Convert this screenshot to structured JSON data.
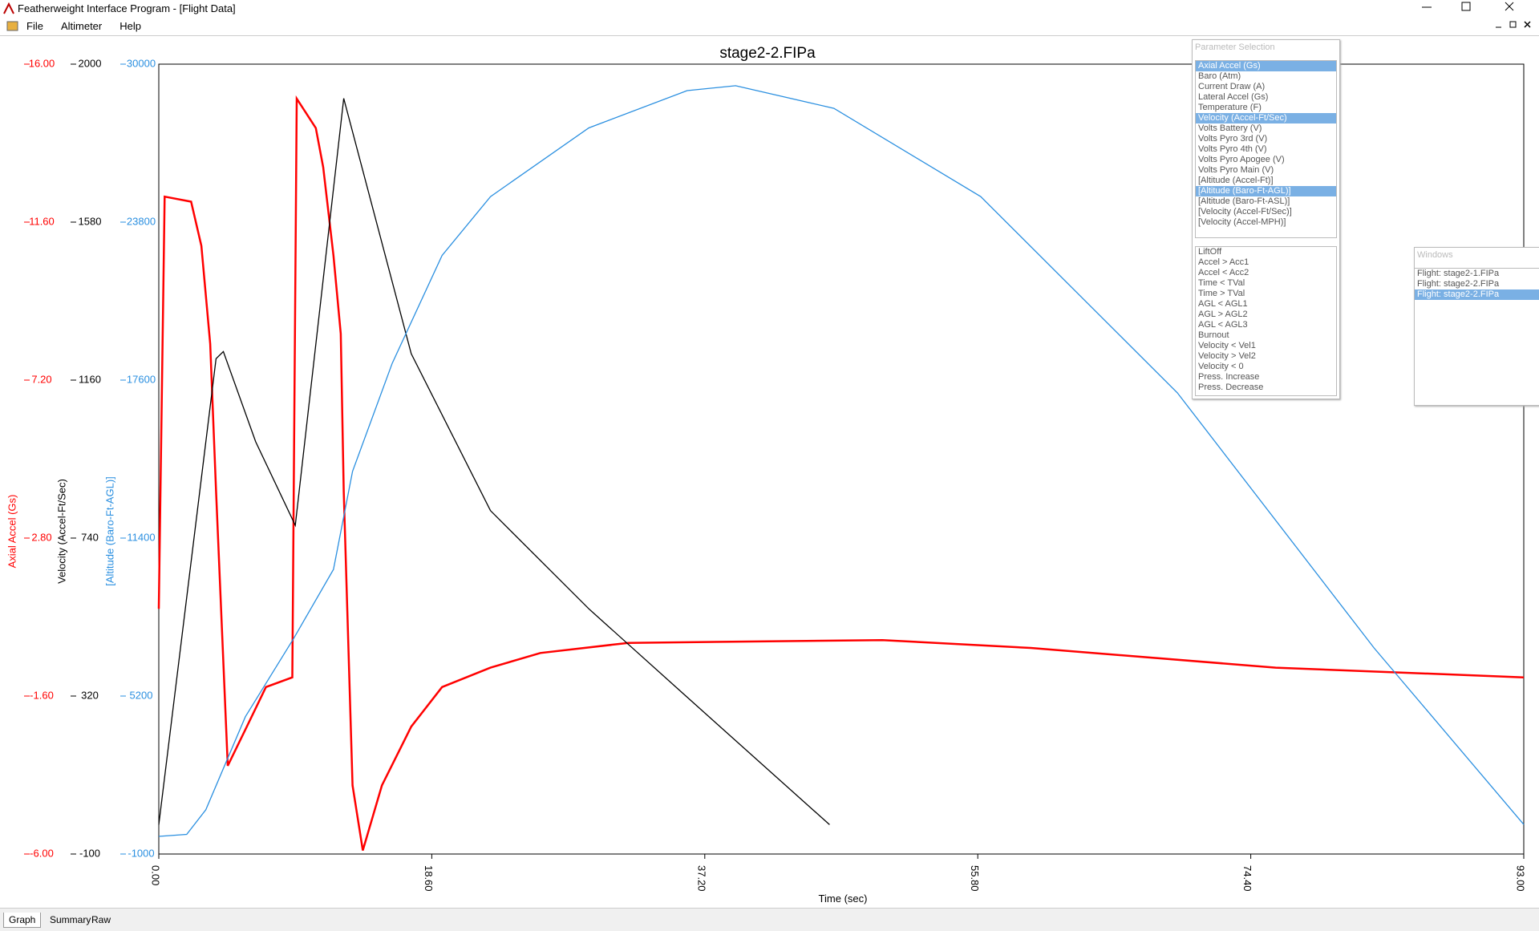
{
  "window": {
    "title": "Featherweight Interface Program - [Flight Data]",
    "menu": [
      "File",
      "Altimeter",
      "Help"
    ]
  },
  "parameter_panel": {
    "title": "Parameter Selection",
    "items": [
      "Axial Accel (Gs)",
      "Baro (Atm)",
      "Current Draw (A)",
      "Lateral Accel (Gs)",
      "Temperature (F)",
      "Velocity (Accel-Ft/Sec)",
      "Volts Battery (V)",
      "Volts Pyro 3rd (V)",
      "Volts Pyro 4th (V)",
      "Volts Pyro Apogee (V)",
      "Volts Pyro Main (V)",
      "[Altitude (Accel-Ft)]",
      "[Altitude (Baro-Ft-AGL)]",
      "[Altitude (Baro-Ft-ASL)]",
      "[Velocity (Accel-Ft/Sec)]",
      "[Velocity (Accel-MPH)]"
    ],
    "selected": [
      0,
      5,
      12
    ],
    "events": [
      "LiftOff",
      "Accel > Acc1",
      "Accel < Acc2",
      "Time < TVal",
      "Time > TVal",
      "AGL < AGL1",
      "AGL > AGL2",
      "AGL < AGL3",
      "Burnout",
      "Velocity < Vel1",
      "Velocity > Vel2",
      "Velocity < 0",
      "Press. Increase",
      "Press. Decrease"
    ]
  },
  "windows_panel": {
    "title": "Windows",
    "items": [
      "Flight: stage2-1.FIPa",
      "Flight: stage2-2.FIPa",
      "Flight: stage2-2.FIPa"
    ],
    "selected": [
      2
    ]
  },
  "tabs": {
    "items": [
      "Graph",
      "Summary",
      "Raw"
    ],
    "active": 0
  },
  "chart_data": {
    "type": "line",
    "title": "stage2-2.FIPa",
    "x_label": "Time (sec)",
    "xlim": [
      0,
      93
    ],
    "xticks": [
      {
        "value": 0,
        "label": "0.00"
      },
      {
        "value": 18.6,
        "label": "18.60"
      },
      {
        "value": 37.2,
        "label": "37.20"
      },
      {
        "value": 55.8,
        "label": "55.80"
      },
      {
        "value": 74.4,
        "label": "74.40"
      },
      {
        "value": 93,
        "label": "93.00"
      }
    ],
    "series": [
      {
        "name": "Axial Accel (Gs)",
        "color": "#ff0000",
        "ylim": [
          -6,
          16
        ],
        "yticks": [
          {
            "value": -6,
            "label": "-6.00"
          },
          {
            "value": -1.6,
            "label": "-1.60"
          },
          {
            "value": 2.8,
            "label": "2.80"
          },
          {
            "value": 7.2,
            "label": "7.20"
          },
          {
            "value": 11.6,
            "label": "11.60"
          },
          {
            "value": 16,
            "label": "16.00"
          }
        ],
        "x": [
          0,
          0.4,
          2.2,
          2.9,
          3.5,
          3.9,
          4.7,
          6.0,
          7.3,
          9.1,
          9.4,
          10.7,
          11.2,
          11.9,
          12.4,
          12.6,
          13.2,
          13.9,
          15.2,
          17.2,
          19.3,
          22.6,
          26.0,
          32.0,
          49.3,
          59.4,
          76.1,
          93.0
        ],
        "values": [
          0.83,
          12.31,
          12.17,
          10.94,
          8.21,
          4.11,
          -3.54,
          -2.45,
          -1.35,
          -1.08,
          15.04,
          14.22,
          13.13,
          10.67,
          8.49,
          4.11,
          -4.09,
          -5.9,
          -4.09,
          -2.45,
          -1.35,
          -0.81,
          -0.4,
          -0.12,
          -0.04,
          -0.26,
          -0.81,
          -1.08
        ]
      },
      {
        "name": "Velocity (Accel-Ft/Sec)",
        "color": "#000000",
        "ylim": [
          -100,
          2000
        ],
        "yticks": [
          -100,
          320,
          740,
          1160,
          1580,
          2000
        ],
        "x": [
          0,
          3.9,
          4.4,
          6.6,
          9.3,
          12.6,
          17.2,
          22.6,
          29.3,
          36.0,
          45.7
        ],
        "values": [
          -22,
          1217,
          1236,
          996,
          774,
          1909,
          1230,
          813,
          552,
          317,
          -22
        ]
      },
      {
        "name": "[Altitude (Baro-Ft-AGL)]",
        "color": "#2a8fe0",
        "ylim": [
          -1000,
          30000
        ],
        "yticks": [
          -1000,
          5200,
          11400,
          17600,
          23800,
          30000
        ],
        "x": [
          0,
          1.9,
          3.2,
          5.9,
          9.2,
          11.9,
          13.2,
          15.9,
          19.3,
          22.6,
          29.3,
          36.0,
          39.3,
          46.0,
          56.0,
          69.4,
          82.8,
          93.0
        ],
        "values": [
          -307,
          -230,
          733,
          4392,
          7472,
          10168,
          14019,
          18255,
          22491,
          24801,
          27497,
          28960,
          29153,
          28267,
          24801,
          17099,
          7087,
          157
        ]
      }
    ]
  }
}
